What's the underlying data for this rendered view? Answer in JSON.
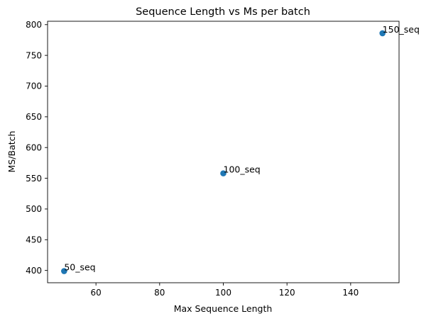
{
  "chart_data": {
    "type": "scatter",
    "title": "Sequence Length vs Ms per batch",
    "xlabel": "Max Sequence Length",
    "ylabel": "MS/Batch",
    "xlim": [
      44.8,
      155.2
    ],
    "ylim": [
      380.0,
      805.5
    ],
    "x_ticks": [
      60,
      80,
      100,
      120,
      140
    ],
    "y_ticks": [
      400,
      450,
      500,
      550,
      600,
      650,
      700,
      750,
      800
    ],
    "grid": false,
    "marker_color": "#1f77b4",
    "points": [
      {
        "x": 50,
        "y": 399,
        "label": "50_seq"
      },
      {
        "x": 100,
        "y": 558,
        "label": "100_seq"
      },
      {
        "x": 150,
        "y": 786,
        "label": "150_seq"
      }
    ]
  }
}
